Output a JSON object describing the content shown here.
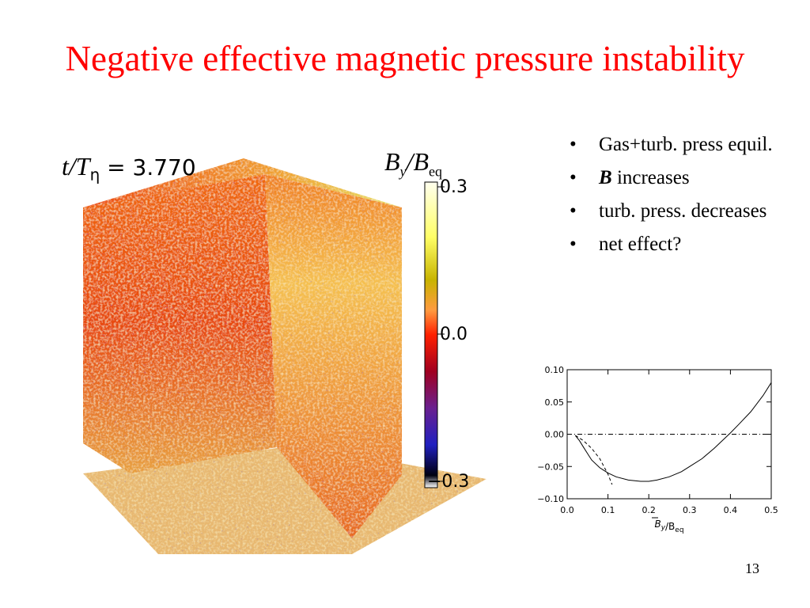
{
  "slide": {
    "title": "Negative effective magnetic pressure instability",
    "page_number": "13",
    "bullets": [
      {
        "bold": "",
        "text": "Gas+turb. press equil."
      },
      {
        "bold": "B",
        "text": " increases"
      },
      {
        "bold": "",
        "text": "turb. press. decreases"
      },
      {
        "bold": "",
        "text": "net effect?"
      }
    ]
  },
  "cube_figure": {
    "time_label_var": "t/T",
    "time_label_sub": "η",
    "time_label_value": " = 3.770",
    "colorbar_label_var": "B",
    "colorbar_label_sub1": "y",
    "colorbar_label_mid": "/B",
    "colorbar_label_sub2": "eq",
    "colorbar_ticks": [
      "0.3",
      "0.0",
      "−0.3"
    ],
    "colors": {
      "low": "#0a0a40",
      "mid": "#ff2000",
      "high": "#ffffe8"
    }
  },
  "chart_data": {
    "type": "line",
    "xlabel_main": "B",
    "xlabel_sub1": "y",
    "xlabel_mid": "/B",
    "xlabel_sub2": "eq",
    "ylabel": "",
    "xlim": [
      0.0,
      0.5
    ],
    "ylim": [
      -0.1,
      0.1
    ],
    "x_ticks": [
      "0.0",
      "0.1",
      "0.2",
      "0.3",
      "0.4",
      "0.5"
    ],
    "y_ticks": [
      "0.10",
      "0.05",
      "0.00",
      "−0.05",
      "−0.10"
    ],
    "series": [
      {
        "style": "solid",
        "x": [
          0.02,
          0.03,
          0.04,
          0.05,
          0.06,
          0.08,
          0.1,
          0.12,
          0.15,
          0.18,
          0.2,
          0.22,
          0.25,
          0.28,
          0.3,
          0.33,
          0.36,
          0.38,
          0.4,
          0.42,
          0.45,
          0.48,
          0.5
        ],
        "y": [
          -0.002,
          -0.01,
          -0.02,
          -0.03,
          -0.04,
          -0.052,
          -0.06,
          -0.066,
          -0.071,
          -0.073,
          -0.073,
          -0.071,
          -0.066,
          -0.058,
          -0.05,
          -0.038,
          -0.022,
          -0.01,
          0.002,
          0.015,
          0.035,
          0.06,
          0.08
        ]
      },
      {
        "style": "dashed",
        "x": [
          0.02,
          0.04,
          0.06,
          0.08,
          0.1,
          0.11
        ],
        "y": [
          -0.002,
          -0.01,
          -0.022,
          -0.038,
          -0.062,
          -0.078
        ]
      },
      {
        "style": "dashdot",
        "x": [
          0.0,
          0.5
        ],
        "y": [
          0.0,
          0.0
        ]
      }
    ]
  }
}
